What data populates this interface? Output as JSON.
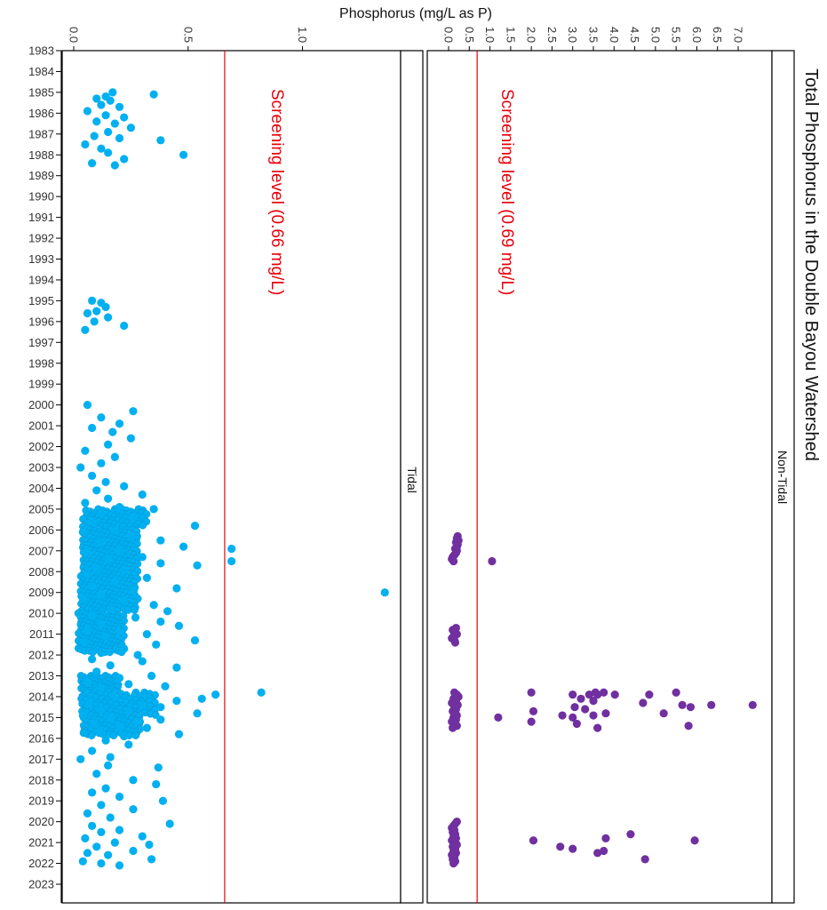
{
  "chart_data": {
    "type": "scatter",
    "title": "Total Phosphorus in the Double Bayou Watershed",
    "ylabel": "Phosphorus (mg/L as P)",
    "xlabel": "",
    "year_range": [
      1983,
      2023
    ],
    "year_ticks": [
      "1983",
      "1984",
      "1985",
      "1986",
      "1987",
      "1988",
      "1989",
      "1990",
      "1991",
      "1992",
      "1993",
      "1994",
      "1995",
      "1996",
      "1997",
      "1998",
      "1999",
      "2000",
      "2001",
      "2002",
      "2003",
      "2004",
      "2005",
      "2006",
      "2007",
      "2008",
      "2009",
      "2010",
      "2011",
      "2012",
      "2013",
      "2014",
      "2015",
      "2016",
      "2017",
      "2018",
      "2019",
      "2020",
      "2021",
      "2022",
      "2023"
    ],
    "grid": false,
    "panels": [
      {
        "name": "Tidal",
        "color": "#00b0f0",
        "ylim": [
          0,
          1.38
        ],
        "ticks": [
          0,
          0.5,
          1.0
        ],
        "tick_labels": [
          "0.0",
          "0.5",
          "1.0"
        ],
        "screening_level": 0.66,
        "screening_label": "Screening level (0.66 mg/L)",
        "screening_color": "#e8000b",
        "points": [
          [
            1985.0,
            0.17
          ],
          [
            1985.1,
            0.35
          ],
          [
            1985.2,
            0.14
          ],
          [
            1985.3,
            0.1
          ],
          [
            1985.4,
            0.16
          ],
          [
            1985.6,
            0.12
          ],
          [
            1985.7,
            0.2
          ],
          [
            1985.9,
            0.06
          ],
          [
            1986.1,
            0.14
          ],
          [
            1986.2,
            0.22
          ],
          [
            1986.4,
            0.1
          ],
          [
            1986.5,
            0.18
          ],
          [
            1986.7,
            0.25
          ],
          [
            1986.9,
            0.15
          ],
          [
            1987.1,
            0.09
          ],
          [
            1987.2,
            0.2
          ],
          [
            1987.3,
            0.38
          ],
          [
            1987.5,
            0.05
          ],
          [
            1987.7,
            0.12
          ],
          [
            1987.9,
            0.15
          ],
          [
            1988.0,
            0.48
          ],
          [
            1988.2,
            0.22
          ],
          [
            1988.4,
            0.08
          ],
          [
            1988.5,
            0.18
          ],
          [
            1995.0,
            0.08
          ],
          [
            1995.1,
            0.12
          ],
          [
            1995.3,
            0.14
          ],
          [
            1995.5,
            0.1
          ],
          [
            1995.6,
            0.06
          ],
          [
            1995.8,
            0.15
          ],
          [
            1996.0,
            0.09
          ],
          [
            1996.2,
            0.22
          ],
          [
            1996.4,
            0.05
          ],
          [
            2000.0,
            0.06
          ],
          [
            2000.3,
            0.26
          ],
          [
            2000.6,
            0.12
          ],
          [
            2000.9,
            0.2
          ],
          [
            2001.1,
            0.08
          ],
          [
            2001.3,
            0.17
          ],
          [
            2001.6,
            0.25
          ],
          [
            2001.9,
            0.15
          ],
          [
            2002.2,
            0.05
          ],
          [
            2002.5,
            0.18
          ],
          [
            2002.8,
            0.12
          ],
          [
            2003.0,
            0.03
          ],
          [
            2003.4,
            0.08
          ],
          [
            2003.7,
            0.14
          ],
          [
            2003.9,
            0.22
          ],
          [
            2004.1,
            0.1
          ],
          [
            2004.3,
            0.3
          ],
          [
            2004.5,
            0.15
          ],
          [
            2004.7,
            0.05
          ],
          [
            2004.9,
            0.2
          ],
          [
            2005.0,
            0.35
          ],
          [
            2005.2,
            0.12
          ],
          [
            2005.4,
            0.26
          ],
          [
            2005.6,
            0.08
          ],
          [
            2005.8,
            0.53
          ],
          [
            2006.0,
            0.18
          ],
          [
            2006.1,
            0.04
          ],
          [
            2006.3,
            0.25
          ],
          [
            2006.5,
            0.38
          ],
          [
            2006.6,
            0.12
          ],
          [
            2006.8,
            0.48
          ],
          [
            2006.9,
            0.69
          ],
          [
            2007.0,
            0.2
          ],
          [
            2007.1,
            0.06
          ],
          [
            2007.3,
            0.3
          ],
          [
            2007.4,
            0.15
          ],
          [
            2007.5,
            0.69
          ],
          [
            2007.6,
            0.38
          ],
          [
            2007.7,
            0.54
          ],
          [
            2007.8,
            0.1
          ],
          [
            2007.9,
            0.22
          ],
          [
            2008.1,
            0.06
          ],
          [
            2008.3,
            0.32
          ],
          [
            2008.5,
            0.18
          ],
          [
            2008.7,
            0.08
          ],
          [
            2008.8,
            0.45
          ],
          [
            2008.9,
            0.26
          ],
          [
            2009.0,
            1.36
          ],
          [
            2009.1,
            0.12
          ],
          [
            2009.3,
            0.04
          ],
          [
            2009.4,
            0.22
          ],
          [
            2009.6,
            0.35
          ],
          [
            2009.8,
            0.16
          ],
          [
            2009.9,
            0.41
          ],
          [
            2010.1,
            0.08
          ],
          [
            2010.2,
            0.27
          ],
          [
            2010.4,
            0.38
          ],
          [
            2010.5,
            0.12
          ],
          [
            2010.6,
            0.46
          ],
          [
            2010.8,
            0.06
          ],
          [
            2010.9,
            0.2
          ],
          [
            2011.0,
            0.32
          ],
          [
            2011.1,
            0.14
          ],
          [
            2011.3,
            0.53
          ],
          [
            2011.4,
            0.05
          ],
          [
            2011.5,
            0.36
          ],
          [
            2011.7,
            0.22
          ],
          [
            2011.9,
            0.12
          ],
          [
            2012.0,
            0.28
          ],
          [
            2012.2,
            0.08
          ],
          [
            2012.3,
            0.3
          ],
          [
            2012.5,
            0.16
          ],
          [
            2012.6,
            0.45
          ],
          [
            2012.8,
            0.1
          ],
          [
            2013.0,
            0.34
          ],
          [
            2013.1,
            0.2
          ],
          [
            2013.3,
            0.06
          ],
          [
            2013.4,
            0.24
          ],
          [
            2013.5,
            0.4
          ],
          [
            2013.6,
            0.12
          ],
          [
            2013.8,
            0.82
          ],
          [
            2013.9,
            0.62
          ],
          [
            2014.0,
            0.18
          ],
          [
            2014.1,
            0.56
          ],
          [
            2014.2,
            0.45
          ],
          [
            2014.3,
            0.07
          ],
          [
            2014.4,
            0.3
          ],
          [
            2014.5,
            0.38
          ],
          [
            2014.6,
            0.12
          ],
          [
            2014.7,
            0.24
          ],
          [
            2014.8,
            0.54
          ],
          [
            2014.9,
            0.04
          ],
          [
            2015.0,
            0.16
          ],
          [
            2015.1,
            0.38
          ],
          [
            2015.2,
            0.28
          ],
          [
            2015.3,
            0.09
          ],
          [
            2015.4,
            0.2
          ],
          [
            2015.5,
            0.32
          ],
          [
            2015.7,
            0.11
          ],
          [
            2015.8,
            0.46
          ],
          [
            2015.9,
            0.22
          ],
          [
            2016.1,
            0.14
          ],
          [
            2016.3,
            0.24
          ],
          [
            2016.6,
            0.08
          ],
          [
            2016.9,
            0.16
          ],
          [
            2017.0,
            0.03
          ],
          [
            2017.3,
            0.15
          ],
          [
            2017.4,
            0.37
          ],
          [
            2017.7,
            0.1
          ],
          [
            2018.0,
            0.26
          ],
          [
            2018.2,
            0.36
          ],
          [
            2018.4,
            0.14
          ],
          [
            2018.6,
            0.08
          ],
          [
            2018.8,
            0.2
          ],
          [
            2019.0,
            0.39
          ],
          [
            2019.2,
            0.12
          ],
          [
            2019.4,
            0.26
          ],
          [
            2019.6,
            0.06
          ],
          [
            2019.8,
            0.16
          ],
          [
            2020.1,
            0.42
          ],
          [
            2020.2,
            0.08
          ],
          [
            2020.4,
            0.2
          ],
          [
            2020.5,
            0.12
          ],
          [
            2020.7,
            0.3
          ],
          [
            2020.8,
            0.05
          ],
          [
            2021.0,
            0.18
          ],
          [
            2021.1,
            0.33
          ],
          [
            2021.2,
            0.1
          ],
          [
            2021.4,
            0.26
          ],
          [
            2021.5,
            0.06
          ],
          [
            2021.6,
            0.15
          ],
          [
            2021.8,
            0.34
          ],
          [
            2021.9,
            0.04
          ],
          [
            2022.0,
            0.12
          ],
          [
            2022.1,
            0.2
          ]
        ],
        "dense_bands": [
          {
            "from": 2005.0,
            "to": 2005.9,
            "xmin": 0.04,
            "xmax": 0.32
          },
          {
            "from": 2006.0,
            "to": 2009.9,
            "xmin": 0.03,
            "xmax": 0.28
          },
          {
            "from": 2010.0,
            "to": 2011.9,
            "xmin": 0.02,
            "xmax": 0.22
          },
          {
            "from": 2013.0,
            "to": 2013.8,
            "xmin": 0.03,
            "xmax": 0.2
          },
          {
            "from": 2013.8,
            "to": 2014.9,
            "xmin": 0.02,
            "xmax": 0.36
          },
          {
            "from": 2014.9,
            "to": 2015.9,
            "xmin": 0.04,
            "xmax": 0.3
          }
        ]
      },
      {
        "name": "Non-Tidal",
        "color": "#7030a0",
        "ylim": [
          0,
          7.5
        ],
        "ticks": [
          0,
          0.5,
          1.0,
          1.5,
          2.0,
          2.5,
          3.0,
          3.5,
          4.0,
          4.5,
          5.0,
          5.5,
          6.0,
          6.5,
          7.0
        ],
        "tick_labels": [
          "0.0",
          "0.5",
          "1.0",
          "1.5",
          "2.0",
          "2.5",
          "3.0",
          "3.5",
          "4.0",
          "4.5",
          "5.0",
          "5.5",
          "6.0",
          "6.5",
          "7.0"
        ],
        "screening_level": 0.69,
        "screening_label": "Screening level (0.69 mg/L)",
        "screening_color": "#e8000b",
        "points": [
          [
            2006.3,
            0.22
          ],
          [
            2006.4,
            0.2
          ],
          [
            2006.5,
            0.24
          ],
          [
            2006.6,
            0.18
          ],
          [
            2006.7,
            0.22
          ],
          [
            2006.8,
            0.2
          ],
          [
            2006.9,
            0.16
          ],
          [
            2007.0,
            0.2
          ],
          [
            2007.1,
            0.18
          ],
          [
            2007.2,
            0.14
          ],
          [
            2007.3,
            0.1
          ],
          [
            2007.4,
            0.08
          ],
          [
            2007.5,
            0.12
          ],
          [
            2007.5,
            1.05
          ],
          [
            2010.7,
            0.18
          ],
          [
            2010.8,
            0.1
          ],
          [
            2010.9,
            0.14
          ],
          [
            2011.0,
            0.2
          ],
          [
            2011.1,
            0.12
          ],
          [
            2011.2,
            0.08
          ],
          [
            2011.3,
            0.14
          ],
          [
            2011.4,
            0.16
          ],
          [
            2013.8,
            0.14
          ],
          [
            2013.9,
            0.2
          ],
          [
            2014.0,
            0.24
          ],
          [
            2014.1,
            0.12
          ],
          [
            2014.2,
            0.18
          ],
          [
            2014.3,
            0.08
          ],
          [
            2014.4,
            0.22
          ],
          [
            2014.5,
            0.14
          ],
          [
            2014.6,
            0.18
          ],
          [
            2014.7,
            0.1
          ],
          [
            2014.8,
            0.16
          ],
          [
            2014.9,
            0.2
          ],
          [
            2015.0,
            0.12
          ],
          [
            2015.1,
            0.18
          ],
          [
            2015.2,
            0.08
          ],
          [
            2015.3,
            0.14
          ],
          [
            2015.4,
            0.2
          ],
          [
            2015.5,
            0.1
          ],
          [
            2013.8,
            2.0
          ],
          [
            2013.8,
            3.55
          ],
          [
            2013.8,
            3.75
          ],
          [
            2013.8,
            5.5
          ],
          [
            2013.9,
            3.0
          ],
          [
            2013.9,
            3.4
          ],
          [
            2013.9,
            3.6
          ],
          [
            2013.9,
            4.02
          ],
          [
            2013.9,
            4.85
          ],
          [
            2014.1,
            3.2
          ],
          [
            2014.2,
            3.5
          ],
          [
            2014.3,
            4.7
          ],
          [
            2014.4,
            5.65
          ],
          [
            2014.4,
            6.35
          ],
          [
            2014.4,
            7.35
          ],
          [
            2014.5,
            5.85
          ],
          [
            2014.5,
            3.05
          ],
          [
            2014.6,
            3.3
          ],
          [
            2014.7,
            2.05
          ],
          [
            2014.8,
            5.2
          ],
          [
            2014.8,
            3.8
          ],
          [
            2014.9,
            2.75
          ],
          [
            2014.9,
            3.5
          ],
          [
            2015.0,
            1.2
          ],
          [
            2015.0,
            3.0
          ],
          [
            2015.2,
            2.0
          ],
          [
            2015.3,
            3.1
          ],
          [
            2015.4,
            5.8
          ],
          [
            2015.5,
            3.6
          ],
          [
            2020.0,
            0.2
          ],
          [
            2020.1,
            0.16
          ],
          [
            2020.2,
            0.12
          ],
          [
            2020.3,
            0.08
          ],
          [
            2020.4,
            0.14
          ],
          [
            2020.5,
            0.1
          ],
          [
            2020.6,
            0.16
          ],
          [
            2020.7,
            0.12
          ],
          [
            2020.8,
            0.18
          ],
          [
            2020.9,
            0.08
          ],
          [
            2021.0,
            0.14
          ],
          [
            2021.1,
            0.2
          ],
          [
            2021.2,
            0.1
          ],
          [
            2021.3,
            0.16
          ],
          [
            2021.4,
            0.12
          ],
          [
            2021.5,
            0.18
          ],
          [
            2021.6,
            0.08
          ],
          [
            2021.7,
            0.14
          ],
          [
            2021.8,
            0.1
          ],
          [
            2021.9,
            0.16
          ],
          [
            2022.0,
            0.12
          ],
          [
            2020.6,
            4.4
          ],
          [
            2020.8,
            3.8
          ],
          [
            2020.9,
            5.95
          ],
          [
            2020.9,
            2.05
          ],
          [
            2021.2,
            2.7
          ],
          [
            2021.3,
            3.0
          ],
          [
            2021.4,
            3.75
          ],
          [
            2021.5,
            3.6
          ],
          [
            2021.8,
            4.75
          ]
        ],
        "dense_bands": []
      }
    ]
  }
}
